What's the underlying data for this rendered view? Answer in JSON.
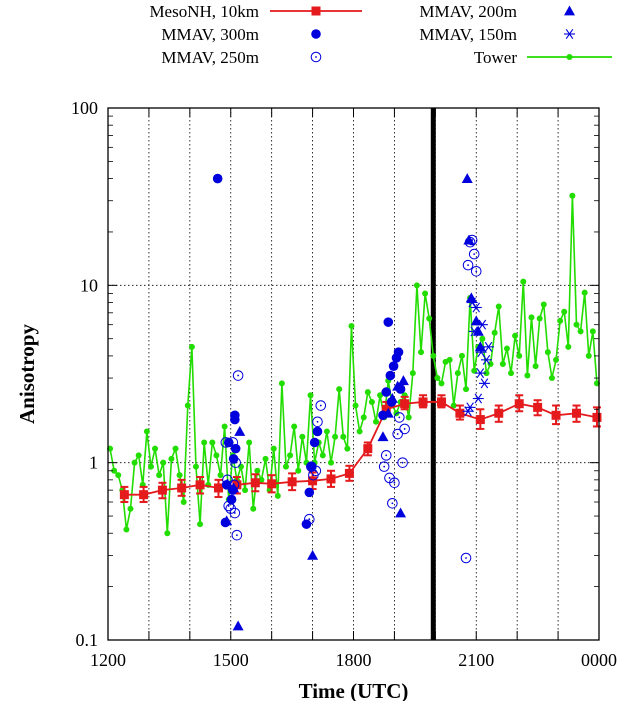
{
  "chart_data": {
    "type": "scatter",
    "title": "",
    "xlabel": "Time (UTC)",
    "ylabel": "Anisotropy",
    "y_scale": "log",
    "ylim": [
      0.1,
      100
    ],
    "xlim": [
      12,
      24
    ],
    "x_ticks": [
      {
        "value": 12,
        "label": "1200"
      },
      {
        "value": 15,
        "label": "1500"
      },
      {
        "value": 18,
        "label": "1800"
      },
      {
        "value": 21,
        "label": "2100"
      },
      {
        "value": 24,
        "label": "0000"
      }
    ],
    "x_minor_ticks": [
      13,
      14,
      16,
      17,
      19,
      20,
      22,
      23
    ],
    "y_ticks": [
      {
        "value": 0.1,
        "label": "0.1"
      },
      {
        "value": 1,
        "label": "1"
      },
      {
        "value": 10,
        "label": "10"
      },
      {
        "value": 100,
        "label": "100"
      }
    ],
    "grid": true,
    "legend_position": "top",
    "vertical_marker_line": {
      "x": 19.95,
      "color": "#000000"
    },
    "series": [
      {
        "name": "MesoNH, 10km",
        "kind": "line-errorbar",
        "color": "#e41a1c",
        "marker": "square",
        "x": [
          12.4,
          12.87,
          13.33,
          13.8,
          14.25,
          14.7,
          15.15,
          15.6,
          16.0,
          16.5,
          17.0,
          17.45,
          17.9,
          18.35,
          18.8,
          19.25,
          19.7,
          20.15,
          20.6,
          21.1,
          21.55,
          22.05,
          22.5,
          22.95,
          23.45,
          23.95
        ],
        "y": [
          0.66,
          0.66,
          0.7,
          0.72,
          0.75,
          0.72,
          0.75,
          0.77,
          0.76,
          0.78,
          0.79,
          0.81,
          0.87,
          1.2,
          2.0,
          2.15,
          2.2,
          2.2,
          1.9,
          1.75,
          1.9,
          2.15,
          2.05,
          1.85,
          1.9,
          1.8
        ],
        "err_low": [
          0.6,
          0.6,
          0.63,
          0.65,
          0.67,
          0.64,
          0.67,
          0.69,
          0.68,
          0.7,
          0.71,
          0.73,
          0.79,
          1.1,
          1.85,
          2.0,
          2.05,
          2.05,
          1.75,
          1.55,
          1.7,
          1.95,
          1.85,
          1.65,
          1.7,
          1.6
        ],
        "err_high": [
          0.73,
          0.73,
          0.77,
          0.8,
          0.83,
          0.8,
          0.83,
          0.86,
          0.85,
          0.87,
          0.88,
          0.9,
          0.96,
          1.3,
          2.2,
          2.35,
          2.4,
          2.4,
          2.1,
          2.0,
          2.1,
          2.4,
          2.25,
          2.1,
          2.1,
          2.05
        ]
      },
      {
        "name": "MMAV, 300m",
        "kind": "scatter",
        "color": "#0000dd",
        "marker": "filled-circle",
        "x": [
          14.68,
          14.87,
          14.9,
          14.95,
          15.02,
          15.05,
          15.07,
          15.1,
          15.1,
          15.12,
          16.85,
          16.92,
          16.98,
          17.05,
          17.12,
          18.72,
          18.8,
          18.85,
          18.9,
          18.93,
          18.98,
          19.05,
          19.1,
          19.15
        ],
        "y": [
          40,
          0.46,
          0.75,
          1.3,
          0.62,
          0.7,
          1.05,
          1.75,
          1.85,
          1.2,
          0.45,
          0.68,
          0.95,
          1.3,
          1.5,
          1.85,
          2.5,
          6.2,
          3.1,
          2.2,
          3.5,
          3.9,
          4.2,
          2.6
        ],
        "note": "approximate reading"
      },
      {
        "name": "MMAV, 250m",
        "kind": "scatter",
        "color": "#0000dd",
        "marker": "open-dot-circle",
        "x": [
          14.88,
          14.92,
          14.95,
          15.0,
          15.05,
          15.08,
          15.1,
          15.12,
          15.15,
          15.18,
          16.92,
          16.97,
          17.02,
          17.08,
          17.12,
          17.2,
          18.75,
          18.8,
          18.88,
          18.95,
          19.0,
          19.08,
          19.12,
          19.2,
          19.25,
          20.75,
          20.8,
          20.85,
          20.9,
          20.95,
          21.0
        ],
        "y": [
          1.3,
          0.8,
          0.57,
          0.55,
          1.3,
          0.75,
          0.52,
          1.0,
          0.39,
          3.1,
          0.48,
          0.95,
          0.85,
          0.9,
          1.7,
          2.1,
          0.95,
          1.1,
          0.82,
          0.59,
          0.77,
          1.45,
          1.8,
          1.0,
          1.55,
          0.29,
          13,
          17.5,
          18,
          15,
          12
        ]
      },
      {
        "name": "MMAV, 200m",
        "kind": "scatter",
        "color": "#0000dd",
        "marker": "filled-triangle",
        "x": [
          14.9,
          15.07,
          15.18,
          15.22,
          17.0,
          18.72,
          18.85,
          18.95,
          19.08,
          19.15,
          19.22,
          20.78,
          20.82,
          20.88,
          21.0,
          21.05,
          21.1
        ],
        "y": [
          0.47,
          0.72,
          0.12,
          1.5,
          0.3,
          1.4,
          1.9,
          2.3,
          2.7,
          0.52,
          2.9,
          40,
          18,
          8.5,
          6.3,
          5.5,
          4.5
        ]
      },
      {
        "name": "MMAV, 150m",
        "kind": "scatter",
        "color": "#0000dd",
        "marker": "asterisk",
        "x": [
          20.8,
          20.85,
          20.9,
          20.95,
          21.0,
          21.05,
          21.1,
          21.12,
          21.15,
          21.2,
          21.25,
          21.3
        ],
        "y": [
          1.95,
          2.05,
          8.0,
          5.5,
          7.5,
          2.3,
          3.2,
          4.2,
          6.0,
          2.8,
          3.8,
          4.5
        ]
      },
      {
        "name": "Tower",
        "kind": "line-marker",
        "color": "#22dd00",
        "marker": "small-dot",
        "x": [
          12.05,
          12.15,
          12.25,
          12.35,
          12.45,
          12.55,
          12.65,
          12.75,
          12.85,
          12.95,
          13.05,
          13.15,
          13.25,
          13.35,
          13.45,
          13.55,
          13.65,
          13.75,
          13.85,
          13.95,
          14.05,
          14.15,
          14.25,
          14.35,
          14.45,
          14.55,
          14.65,
          14.75,
          14.85,
          14.95,
          15.05,
          15.15,
          15.25,
          15.35,
          15.45,
          15.55,
          15.65,
          15.75,
          15.85,
          15.95,
          16.05,
          16.15,
          16.25,
          16.35,
          16.45,
          16.55,
          16.65,
          16.75,
          16.85,
          16.95,
          17.05,
          17.15,
          17.25,
          17.35,
          17.45,
          17.55,
          17.65,
          17.75,
          17.85,
          17.95,
          18.05,
          18.15,
          18.25,
          18.35,
          18.45,
          18.55,
          18.65,
          18.75,
          18.85,
          18.95,
          19.05,
          19.15,
          19.25,
          19.35,
          19.45,
          19.55,
          19.65,
          19.75,
          19.85,
          19.95,
          20.05,
          20.15,
          20.25,
          20.35,
          20.45,
          20.55,
          20.65,
          20.75,
          20.85,
          20.95,
          21.05,
          21.15,
          21.25,
          21.35,
          21.45,
          21.55,
          21.65,
          21.75,
          21.85,
          21.95,
          22.05,
          22.15,
          22.25,
          22.35,
          22.45,
          22.55,
          22.65,
          22.75,
          22.85,
          22.95,
          23.05,
          23.15,
          23.25,
          23.35,
          23.45,
          23.55,
          23.65,
          23.75,
          23.85,
          23.95
        ],
        "y": [
          1.2,
          0.9,
          0.85,
          0.7,
          0.42,
          0.55,
          1.0,
          1.1,
          0.75,
          1.5,
          0.95,
          1.2,
          0.85,
          1.0,
          0.4,
          1.05,
          1.2,
          0.85,
          0.6,
          2.1,
          4.5,
          0.95,
          0.45,
          1.3,
          0.75,
          1.3,
          1.1,
          0.85,
          1.6,
          0.62,
          1.1,
          0.8,
          0.95,
          0.7,
          1.3,
          0.55,
          0.9,
          0.8,
          1.05,
          0.7,
          1.2,
          0.65,
          2.8,
          0.95,
          1.1,
          1.6,
          0.9,
          1.4,
          1.0,
          2.4,
          1.0,
          1.3,
          1.1,
          1.5,
          1.0,
          1.4,
          2.6,
          1.4,
          1.2,
          5.9,
          2.1,
          1.5,
          1.8,
          2.5,
          2.2,
          1.7,
          2.4,
          1.8,
          2.9,
          2.1,
          1.9,
          2.2,
          2.4,
          1.8,
          3.2,
          10,
          4.2,
          9.0,
          6.5,
          4.0,
          3.0,
          2.8,
          3.7,
          3.8,
          2.1,
          3.2,
          4.0,
          2.6,
          8.5,
          3.3,
          4.5,
          5.0,
          3.2,
          3.6,
          5.4,
          7.6,
          3.6,
          4.4,
          3.2,
          5.2,
          4.0,
          10.5,
          3.1,
          6.6,
          3.5,
          6.5,
          7.8,
          4.2,
          3.0,
          3.8,
          6.3,
          7.1,
          4.5,
          32,
          6.0,
          5.5,
          9.1,
          4.0,
          5.5,
          2.8
        ]
      }
    ]
  }
}
